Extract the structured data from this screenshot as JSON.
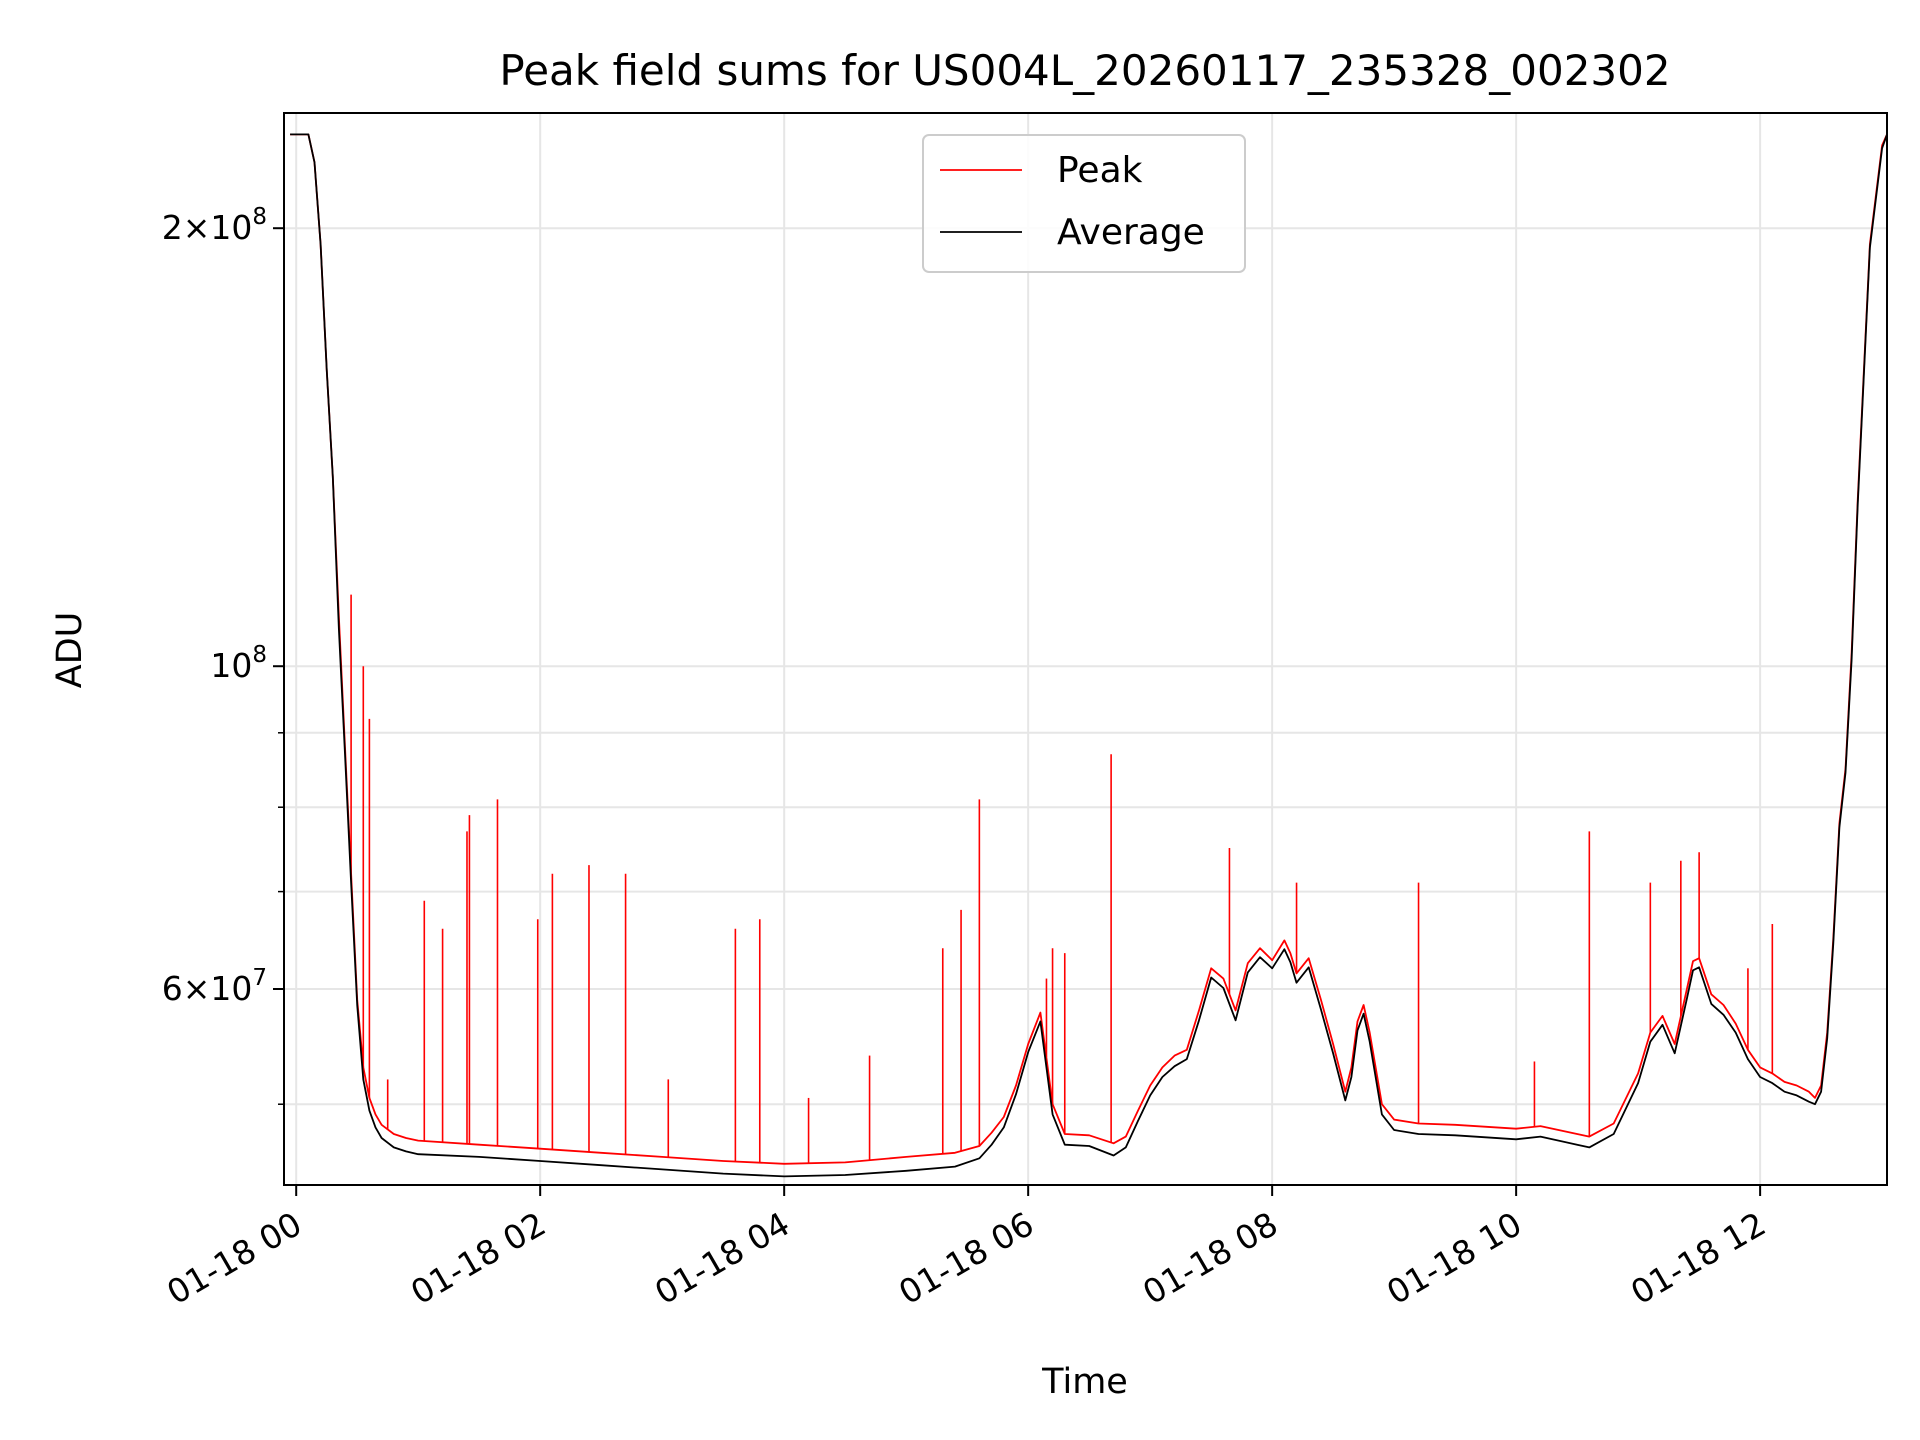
{
  "chart_data": {
    "type": "line",
    "title": "Peak field sums for US004L_20260117_235328_002302",
    "xlabel": "Time",
    "ylabel": "ADU",
    "yscale": "log",
    "ylim": [
      44000000,
      240000000
    ],
    "xlim_hours": [
      -0.1,
      13.04
    ],
    "grid": true,
    "legend_placement": "upper center",
    "x_tick_labels": [
      "01-18 00",
      "01-18 02",
      "01-18 04",
      "01-18 06",
      "01-18 08",
      "01-18 10",
      "01-18 12"
    ],
    "y_tick_labels": [
      {
        "value": 200000000,
        "mantissa": "2",
        "exp": "8"
      },
      {
        "value": 100000000,
        "mantissa": "",
        "exp": "8"
      },
      {
        "value": 60000000,
        "mantissa": "6",
        "exp": "7"
      }
    ],
    "y_minor_ticks": [
      50000000,
      70000000,
      80000000,
      90000000
    ],
    "colors": {
      "peak": "#ff0000",
      "average": "#000000",
      "grid": "#e6e6e6"
    },
    "series": [
      {
        "name": "Peak",
        "color": "#ff0000",
        "x_hours": [
          -0.05,
          0.1,
          0.15,
          0.2,
          0.25,
          0.3,
          0.35,
          0.4,
          0.45,
          0.5,
          0.55,
          0.6,
          0.65,
          0.7,
          0.8,
          0.9,
          1.0,
          1.5,
          2.0,
          2.5,
          3.0,
          3.5,
          4.0,
          4.5,
          5.0,
          5.4,
          5.6,
          5.7,
          5.8,
          5.9,
          6.0,
          6.1,
          6.2,
          6.3,
          6.5,
          6.7,
          6.8,
          6.9,
          7.0,
          7.1,
          7.2,
          7.3,
          7.4,
          7.5,
          7.6,
          7.7,
          7.8,
          7.9,
          8.0,
          8.1,
          8.15,
          8.2,
          8.3,
          8.4,
          8.5,
          8.6,
          8.65,
          8.7,
          8.75,
          8.8,
          8.9,
          9.0,
          9.2,
          9.5,
          10.0,
          10.2,
          10.5,
          10.6,
          10.8,
          11.0,
          11.1,
          11.2,
          11.3,
          11.4,
          11.45,
          11.5,
          11.6,
          11.7,
          11.8,
          11.9,
          12.0,
          12.1,
          12.2,
          12.3,
          12.4,
          12.45,
          12.5,
          12.55,
          12.6,
          12.65,
          12.7,
          12.75,
          12.8,
          12.9,
          13.0,
          13.04
        ],
        "y": [
          232000000,
          232000000,
          222000000,
          195000000,
          160000000,
          135000000,
          108000000,
          88000000,
          72000000,
          59000000,
          53000000,
          50500000,
          49200000,
          48400000,
          47700000,
          47400000,
          47200000,
          46900000,
          46600000,
          46300000,
          46000000,
          45700000,
          45500000,
          45600000,
          46000000,
          46300000,
          46800000,
          47800000,
          49000000,
          51500000,
          55000000,
          57800000,
          50000000,
          47700000,
          47600000,
          47000000,
          47500000,
          49500000,
          51500000,
          53000000,
          54000000,
          54500000,
          58000000,
          62000000,
          61000000,
          58000000,
          62500000,
          64000000,
          62800000,
          64800000,
          63500000,
          61500000,
          63000000,
          59000000,
          55000000,
          51000000,
          53000000,
          57000000,
          58500000,
          56000000,
          50000000,
          48800000,
          48500000,
          48400000,
          48100000,
          48300000,
          47700000,
          47500000,
          48500000,
          52500000,
          56000000,
          57500000,
          55000000,
          60000000,
          62700000,
          63000000,
          59500000,
          58500000,
          56800000,
          54500000,
          53000000,
          52500000,
          51800000,
          51500000,
          51000000,
          50500000,
          51500000,
          56000000,
          65000000,
          78000000,
          85000000,
          102000000,
          130000000,
          195000000,
          228000000,
          232000000
        ],
        "spikes": [
          [
            0.45,
            112000000
          ],
          [
            0.55,
            100000000
          ],
          [
            0.6,
            92000000
          ],
          [
            0.75,
            52000000
          ],
          [
            1.05,
            69000000
          ],
          [
            1.2,
            66000000
          ],
          [
            1.4,
            77000000
          ],
          [
            1.42,
            79000000
          ],
          [
            1.65,
            81000000
          ],
          [
            1.98,
            67000000
          ],
          [
            2.1,
            72000000
          ],
          [
            2.4,
            73000000
          ],
          [
            2.7,
            72000000
          ],
          [
            3.05,
            52000000
          ],
          [
            3.6,
            66000000
          ],
          [
            3.8,
            67000000
          ],
          [
            4.2,
            50500000
          ],
          [
            4.7,
            54000000
          ],
          [
            5.3,
            64000000
          ],
          [
            5.45,
            68000000
          ],
          [
            5.6,
            81000000
          ],
          [
            6.15,
            61000000
          ],
          [
            6.2,
            64000000
          ],
          [
            6.3,
            63500000
          ],
          [
            6.68,
            87000000
          ],
          [
            7.65,
            75000000
          ],
          [
            8.2,
            71000000
          ],
          [
            9.2,
            71000000
          ],
          [
            10.15,
            53500000
          ],
          [
            10.6,
            77000000
          ],
          [
            11.1,
            71000000
          ],
          [
            11.35,
            73500000
          ],
          [
            11.5,
            74500000
          ],
          [
            11.9,
            62000000
          ],
          [
            12.1,
            66500000
          ]
        ]
      },
      {
        "name": "Average",
        "color": "#000000",
        "x_hours": [
          -0.05,
          0.1,
          0.15,
          0.2,
          0.25,
          0.3,
          0.35,
          0.4,
          0.45,
          0.5,
          0.55,
          0.6,
          0.65,
          0.7,
          0.8,
          0.9,
          1.0,
          1.5,
          2.0,
          2.5,
          3.0,
          3.5,
          4.0,
          4.5,
          5.0,
          5.4,
          5.6,
          5.7,
          5.8,
          5.9,
          6.0,
          6.1,
          6.2,
          6.3,
          6.5,
          6.7,
          6.8,
          6.9,
          7.0,
          7.1,
          7.2,
          7.3,
          7.4,
          7.5,
          7.6,
          7.7,
          7.8,
          7.9,
          8.0,
          8.1,
          8.15,
          8.2,
          8.3,
          8.4,
          8.5,
          8.6,
          8.65,
          8.7,
          8.75,
          8.8,
          8.9,
          9.0,
          9.2,
          9.5,
          10.0,
          10.2,
          10.5,
          10.6,
          10.8,
          11.0,
          11.1,
          11.2,
          11.3,
          11.4,
          11.45,
          11.5,
          11.6,
          11.7,
          11.8,
          11.9,
          12.0,
          12.1,
          12.2,
          12.3,
          12.4,
          12.45,
          12.5,
          12.55,
          12.6,
          12.65,
          12.7,
          12.75,
          12.8,
          12.9,
          13.0,
          13.04
        ],
        "y": [
          232000000,
          232000000,
          222000000,
          195000000,
          160000000,
          135000000,
          106000000,
          87000000,
          71000000,
          58500000,
          52000000,
          49500000,
          48200000,
          47400000,
          46700000,
          46400000,
          46200000,
          46000000,
          45700000,
          45400000,
          45100000,
          44800000,
          44600000,
          44700000,
          45000000,
          45300000,
          45900000,
          46900000,
          48200000,
          50800000,
          54300000,
          57000000,
          49200000,
          46900000,
          46800000,
          46100000,
          46700000,
          48700000,
          50700000,
          52200000,
          53100000,
          53700000,
          57100000,
          61100000,
          60100000,
          57100000,
          61600000,
          63100000,
          62000000,
          63900000,
          62600000,
          60600000,
          62100000,
          58100000,
          54200000,
          50300000,
          52200000,
          56200000,
          57700000,
          55200000,
          49200000,
          48000000,
          47700000,
          47600000,
          47300000,
          47500000,
          46900000,
          46700000,
          47700000,
          51700000,
          55200000,
          56700000,
          54200000,
          59100000,
          61800000,
          62100000,
          58600000,
          57600000,
          56000000,
          53700000,
          52200000,
          51700000,
          51000000,
          50700000,
          50200000,
          50000000,
          51000000,
          55500000,
          64500000,
          77500000,
          84500000,
          101000000,
          129000000,
          194000000,
          227000000,
          232000000
        ]
      }
    ]
  }
}
